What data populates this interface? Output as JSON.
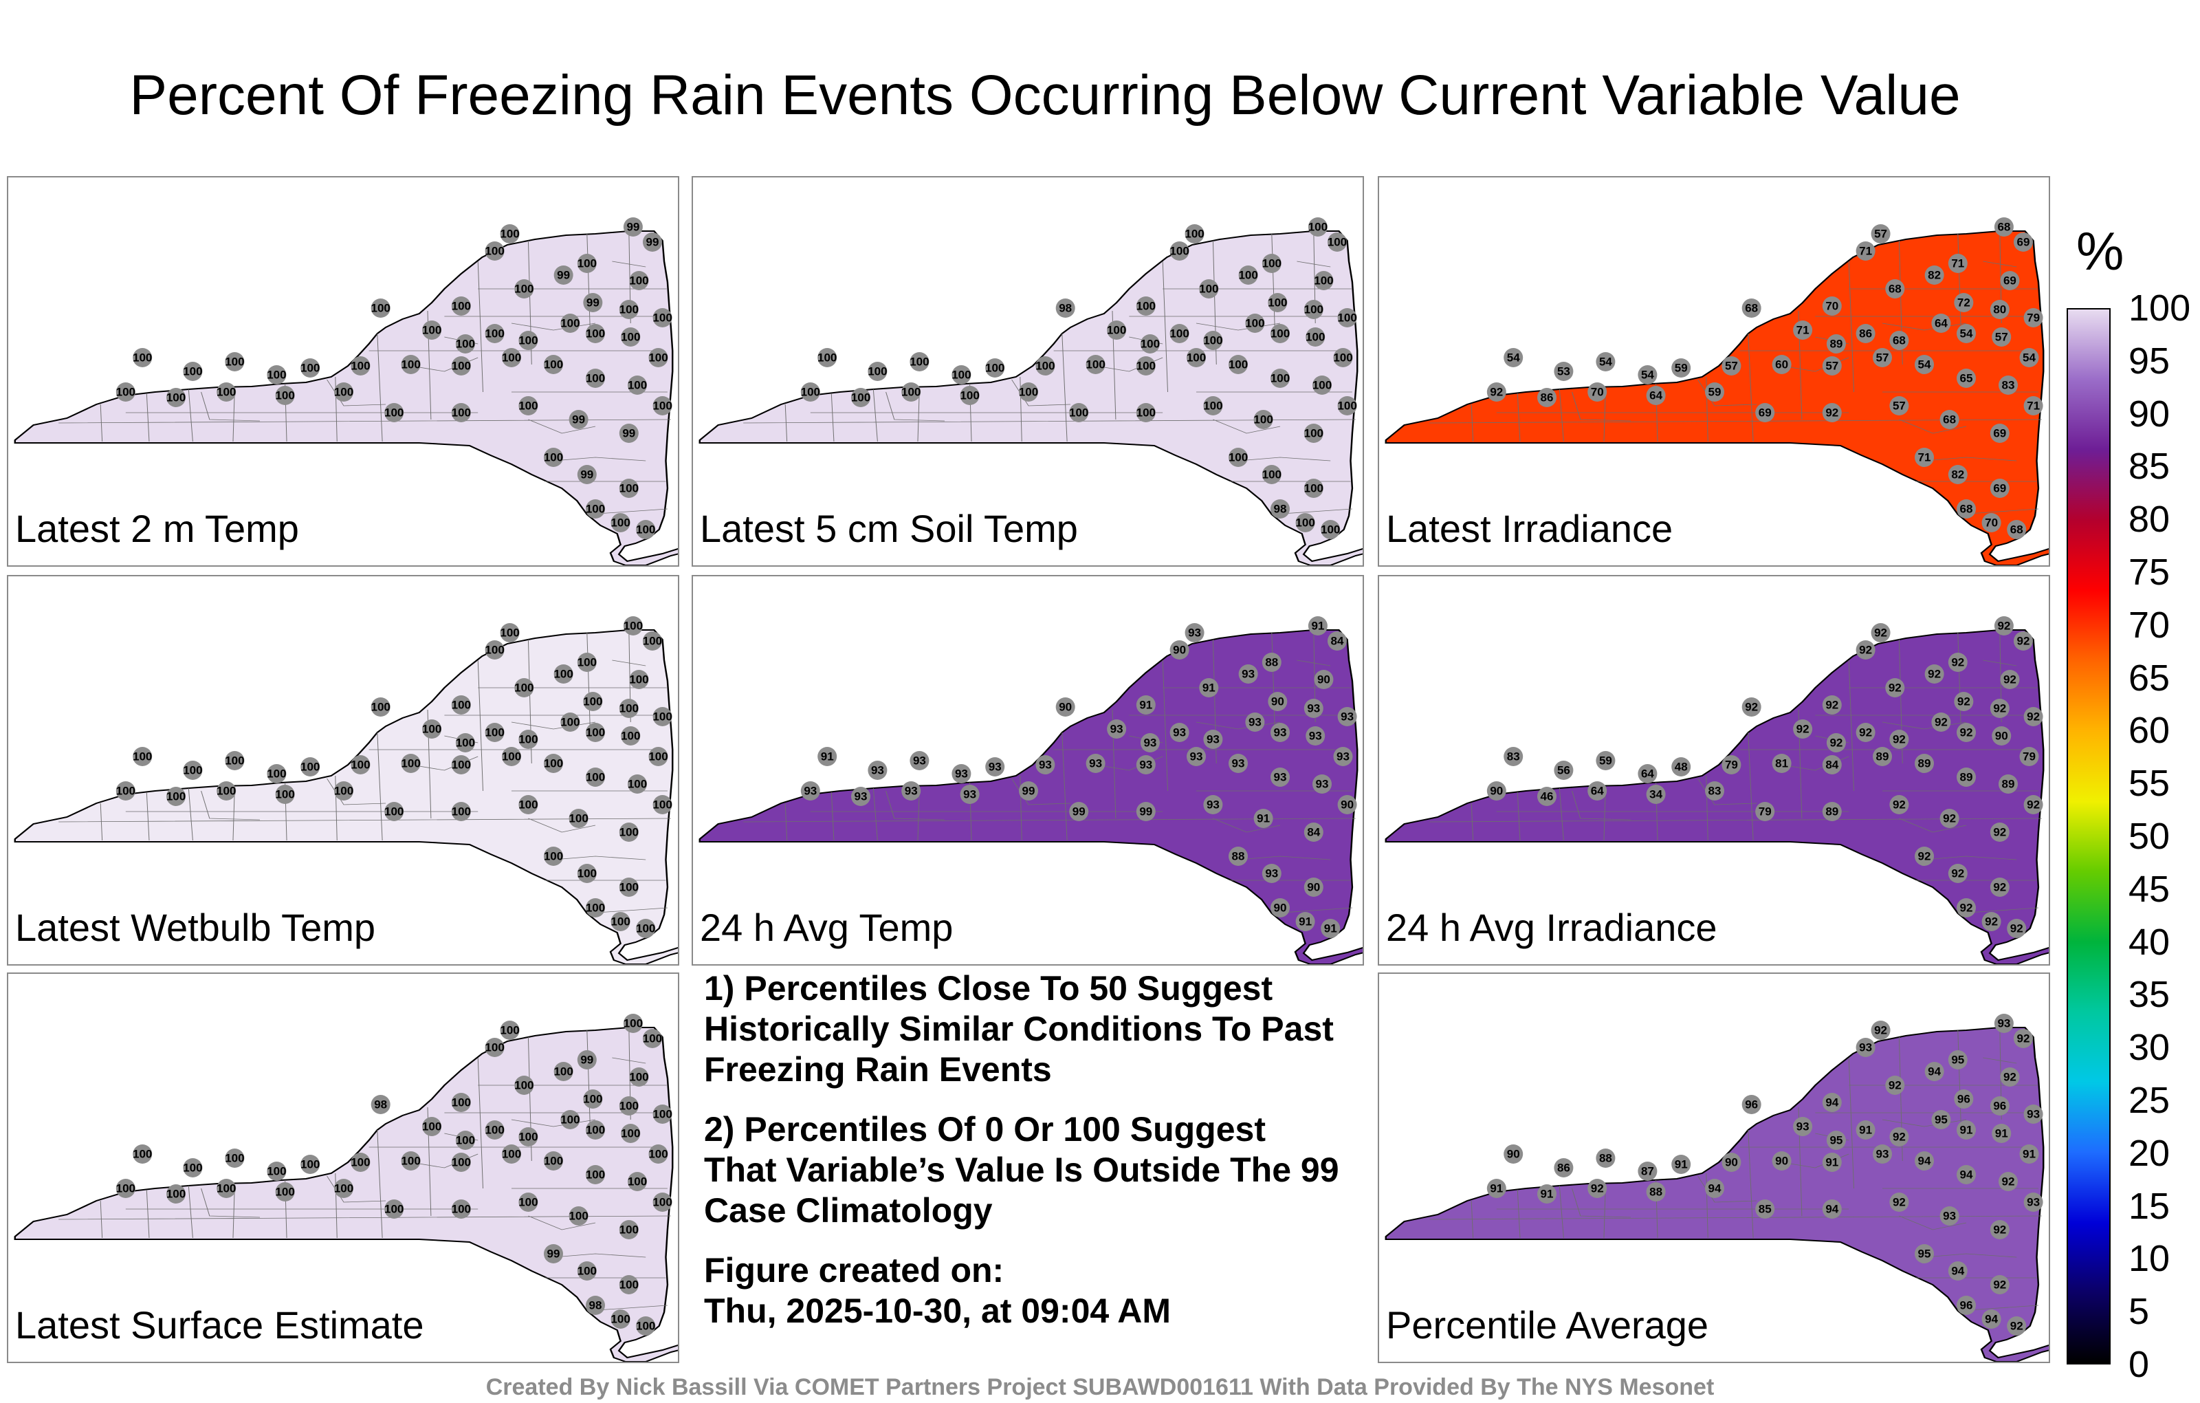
{
  "title": "Percent Of Freezing Rain Events Occurring Below Current Variable Value",
  "colors": {
    "state_outline": "#000000",
    "county_lines": "#6e6e6e",
    "station_marker": "#8c8c8c",
    "colorbar": [
      "#000000",
      "#0b0066",
      "#0000d8",
      "#1e6cff",
      "#00c8e6",
      "#00c8a0",
      "#00b43c",
      "#66cc00",
      "#f0f000",
      "#ffb400",
      "#ff6400",
      "#ff0000",
      "#b4002d",
      "#6e1e96",
      "#9a6cc8",
      "#e8dcf0"
    ]
  },
  "colorbar": {
    "unit": "%",
    "ticks": [
      "100",
      "95",
      "90",
      "85",
      "80",
      "75",
      "70",
      "65",
      "60",
      "55",
      "50",
      "45",
      "40",
      "35",
      "30",
      "25",
      "20",
      "15",
      "10",
      "5",
      "0"
    ]
  },
  "panels": [
    {
      "label": "Latest 2 m Temp",
      "fill": "#e7dcef",
      "values": [
        "100",
        "99",
        "99",
        "100",
        "100",
        "99",
        "100",
        "100",
        "100",
        "100",
        "99",
        "100",
        "100",
        "100",
        "100",
        "100",
        "100",
        "100",
        "100",
        "100",
        "100",
        "100",
        "100",
        "100",
        "100",
        "100",
        "100",
        "100",
        "100",
        "100",
        "100",
        "100",
        "100",
        "100",
        "100",
        "100",
        "100",
        "100",
        "100",
        "100"
      ]
    },
    {
      "label": "Latest 5 cm Soil Temp",
      "fill": "#e7dcef",
      "values": [
        "100",
        "100",
        "100",
        "100",
        "100",
        "100",
        "100",
        "98",
        "100",
        "100",
        "100",
        "100",
        "100",
        "100",
        "100",
        "100",
        "100",
        "100",
        "100",
        "100",
        "100",
        "100",
        "100",
        "100",
        "100",
        "100",
        "100",
        "100",
        "100",
        "100",
        "100",
        "100",
        "100",
        "100",
        "100",
        "100",
        "100",
        "100",
        "100",
        "100"
      ]
    },
    {
      "label": "Latest Irradiance",
      "fill": "#ff3c00",
      "values": [
        "57",
        "68",
        "69",
        "71",
        "71",
        "82",
        "69",
        "68",
        "70",
        "68",
        "72",
        "80",
        "79",
        "71",
        "89",
        "86",
        "68",
        "64",
        "54",
        "57",
        "54",
        "54",
        "53",
        "54",
        "54",
        "59",
        "57",
        "60",
        "57",
        "57",
        "54",
        "65",
        "83",
        "92",
        "86",
        "70",
        "64",
        "59",
        "69",
        "92"
      ]
    },
    {
      "label": "Latest Wetbulb Temp",
      "fill": "#efe9f4",
      "values": [
        "100",
        "100",
        "100",
        "100",
        "100",
        "100",
        "100",
        "100",
        "100",
        "100",
        "100",
        "100",
        "100",
        "100",
        "100",
        "100",
        "100",
        "100",
        "100",
        "100",
        "100",
        "100",
        "100",
        "100",
        "100",
        "100",
        "100",
        "100",
        "100",
        "100",
        "100",
        "100",
        "100",
        "100",
        "100",
        "100",
        "100",
        "100",
        "100",
        "100"
      ]
    },
    {
      "label": "24 h Avg Temp",
      "fill": "#7a3aaa",
      "values": [
        "93",
        "91",
        "84",
        "90",
        "88",
        "93",
        "90",
        "90",
        "91",
        "91",
        "90",
        "93",
        "93",
        "93",
        "93",
        "93",
        "93",
        "93",
        "93",
        "93",
        "93",
        "91",
        "93",
        "93",
        "93",
        "93",
        "93",
        "93",
        "93",
        "93",
        "93",
        "93",
        "93",
        "93",
        "93",
        "93",
        "93",
        "99",
        "99",
        "99"
      ]
    },
    {
      "label": "24 h Avg Irradiance",
      "fill": "#7a3aaa",
      "values": [
        "92",
        "92",
        "92",
        "92",
        "92",
        "92",
        "92",
        "92",
        "92",
        "92",
        "92",
        "92",
        "92",
        "92",
        "92",
        "92",
        "92",
        "92",
        "92",
        "90",
        "79",
        "83",
        "56",
        "59",
        "64",
        "48",
        "79",
        "81",
        "84",
        "89",
        "89",
        "89",
        "89",
        "90",
        "46",
        "64",
        "34",
        "83",
        "79",
        "89"
      ]
    },
    {
      "label": "Latest Surface Estimate",
      "fill": "#e7dcef",
      "values": [
        "100",
        "100",
        "100",
        "100",
        "99",
        "100",
        "100",
        "98",
        "100",
        "100",
        "100",
        "100",
        "100",
        "100",
        "100",
        "100",
        "100",
        "100",
        "100",
        "100",
        "100",
        "100",
        "100",
        "100",
        "100",
        "100",
        "100",
        "100",
        "100",
        "100",
        "100",
        "100",
        "100",
        "100",
        "100",
        "100",
        "100",
        "100",
        "100",
        "100"
      ]
    },
    {
      "label": "Percentile Average",
      "fill": "#8a55b8",
      "values": [
        "92",
        "93",
        "92",
        "93",
        "95",
        "94",
        "92",
        "96",
        "94",
        "92",
        "96",
        "96",
        "93",
        "93",
        "95",
        "91",
        "92",
        "95",
        "91",
        "91",
        "91",
        "90",
        "86",
        "88",
        "87",
        "91",
        "90",
        "90",
        "91",
        "93",
        "94",
        "94",
        "92",
        "91",
        "91",
        "92",
        "88",
        "94",
        "85",
        "94"
      ]
    }
  ],
  "notes": [
    "1) Percentiles Close To 50 Suggest Historically Similar Conditions To Past Freezing Rain Events",
    "2) Percentiles Of 0 Or 100 Suggest That Variable’s Value Is Outside The 99 Case Climatology"
  ],
  "created_label": "Figure created on:",
  "created_date": "Thu, 2025-10-30, at 09:04 AM",
  "footer": "Created By Nick Bassill Via COMET Partners Project SUBAWD001611 With Data Provided By The NYS Mesonet"
}
